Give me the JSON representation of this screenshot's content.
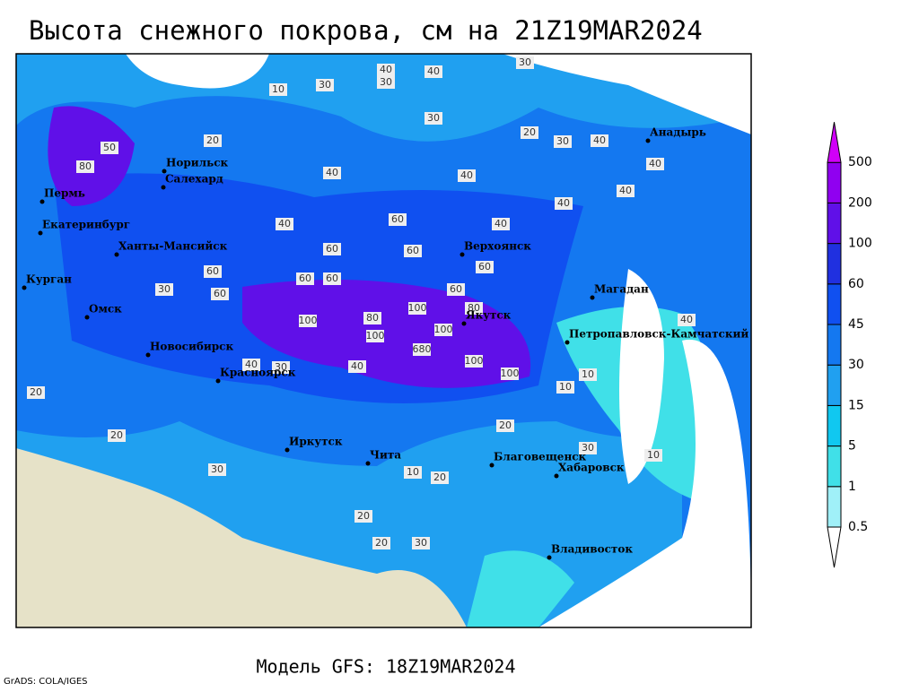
{
  "title": "Высота снежного покрова, см на 21Z19MAR2024",
  "footer": "Модель GFS: 18Z19MAR2024",
  "credit": "GrADS: COLA/IGES",
  "cities": [
    "Норильск",
    "Салехард",
    "Пермь",
    "Екатеринбург",
    "Ханты-Мансийск",
    "Курган",
    "Омск",
    "Новосибирск",
    "Красноярск",
    "Иркутск",
    "Чита",
    "Благовещенск",
    "Хабаровск",
    "Владивосток",
    "Якутск",
    "Верхоянск",
    "Магадан",
    "Анадырь",
    "Петропавловск-Камчатский"
  ],
  "contour_labels": [
    40,
    40,
    30,
    30,
    30,
    10,
    30,
    20,
    30,
    40,
    20,
    50,
    80,
    40,
    40,
    40,
    60,
    40,
    60,
    60,
    60,
    60,
    60,
    60,
    30,
    60,
    60,
    100,
    80,
    100,
    80,
    100,
    100,
    680,
    100,
    100,
    30,
    40,
    40,
    10,
    10,
    20,
    10,
    20,
    20,
    30,
    30,
    20,
    20,
    10,
    30,
    20,
    40,
    40,
    40,
    40
  ],
  "legend": {
    "levels": [
      0.5,
      1,
      5,
      15,
      30,
      45,
      60,
      100,
      200,
      500
    ],
    "colors": [
      "#ffffff",
      "#a0f0f8",
      "#40e0e8",
      "#10c8f0",
      "#20a0f0",
      "#1478f0",
      "#1050f0",
      "#2030e0",
      "#6010e8",
      "#9000f0",
      "#d000f8"
    ]
  }
}
